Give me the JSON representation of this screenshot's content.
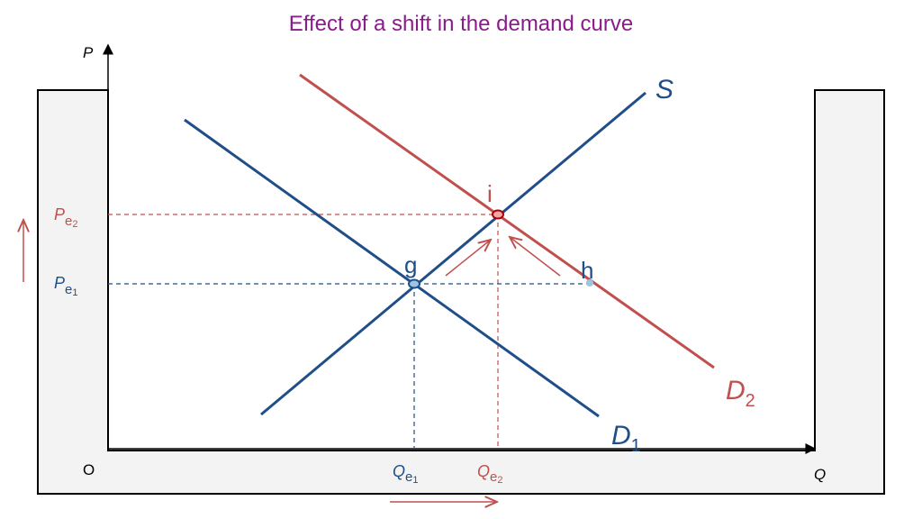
{
  "title": "Effect of a shift in the demand curve",
  "axes": {
    "y": "P",
    "x": "Q",
    "origin": "O"
  },
  "curves": {
    "supply": {
      "main": "S"
    },
    "demand1": {
      "main": "D",
      "sub": "1"
    },
    "demand2": {
      "main": "D",
      "sub": "2"
    }
  },
  "points": {
    "g": "g",
    "h": "h",
    "i": "i"
  },
  "levels": {
    "pe1": {
      "main": "P",
      "sub": "e",
      "subsub": "1"
    },
    "pe2": {
      "main": "P",
      "sub": "e",
      "subsub": "2"
    },
    "qe1": {
      "main": "Q",
      "sub": "e",
      "subsub": "1"
    },
    "qe2": {
      "main": "Q",
      "sub": "e",
      "subsub": "2"
    }
  }
}
